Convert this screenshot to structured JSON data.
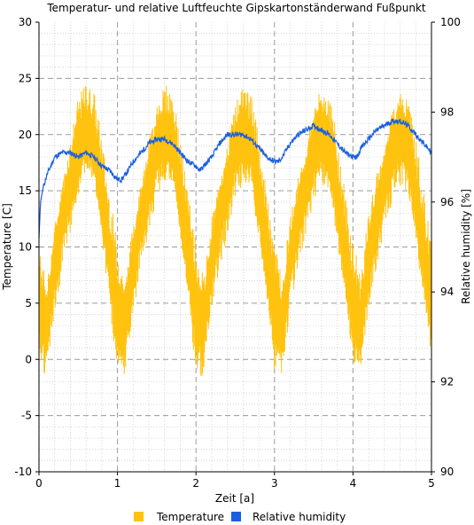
{
  "chart_data": {
    "type": "line",
    "title": "Temperatur- und relative Luftfeuchte Gipskartonständerwand Fußpunkt",
    "xlabel": "Zeit [a]",
    "ylabel_left": "Temperature [C]",
    "ylabel_right": "Relative humidity [%]",
    "xlim": [
      0,
      5
    ],
    "ylim_left": [
      -10,
      30
    ],
    "ylim_right": [
      90,
      100
    ],
    "x_ticks": [
      "0",
      "1",
      "2",
      "3",
      "4",
      "5"
    ],
    "y_ticks_left": [
      "-10",
      "-5",
      "0",
      "5",
      "10",
      "15",
      "20",
      "25",
      "30"
    ],
    "y_ticks_right": [
      "90",
      "92",
      "94",
      "96",
      "98",
      "100"
    ],
    "grid": true,
    "legend_position": "bottom",
    "series": [
      {
        "name": "Temperature",
        "axis": "left",
        "color": "#FFC20E",
        "description_points": {
          "x": [
            0.0,
            0.1,
            0.2,
            0.3,
            0.4,
            0.5,
            0.6,
            0.7,
            0.8,
            0.9,
            1.0,
            1.1,
            1.2,
            1.3,
            1.4,
            1.5,
            1.6,
            1.7,
            1.8,
            1.9,
            2.0,
            2.1,
            2.2,
            2.3,
            2.4,
            2.5,
            2.6,
            2.7,
            2.8,
            2.9,
            3.0,
            3.1,
            3.2,
            3.3,
            3.4,
            3.5,
            3.6,
            3.7,
            3.8,
            3.9,
            4.0,
            4.1,
            4.2,
            4.3,
            4.4,
            4.5,
            4.6,
            4.7,
            4.8,
            4.9,
            5.0
          ],
          "mean": [
            5,
            3,
            9,
            13,
            16,
            19,
            20,
            19,
            14,
            9,
            4,
            3,
            9,
            13,
            16,
            19,
            20,
            19,
            14,
            9,
            4,
            3,
            9,
            13,
            16,
            19,
            20,
            19,
            14,
            9,
            4,
            3,
            9,
            13,
            16,
            19,
            20,
            19,
            14,
            9,
            4,
            3,
            9,
            13,
            16,
            19,
            20,
            19,
            14,
            9,
            4
          ],
          "amplitude": [
            6,
            5,
            5,
            5,
            5,
            5,
            5,
            5,
            6,
            6,
            7,
            5,
            5,
            5,
            5,
            5,
            5,
            5,
            6,
            6,
            7,
            5,
            5,
            5,
            5,
            5,
            5,
            5,
            6,
            6,
            7,
            5,
            5,
            5,
            5,
            5,
            5,
            5,
            6,
            6,
            7,
            5,
            5,
            5,
            5,
            5,
            5,
            5,
            6,
            6,
            7
          ]
        }
      },
      {
        "name": "Relative humidity",
        "axis": "right",
        "color": "#1A5FE0",
        "values_x": [
          0.0,
          0.02,
          0.05,
          0.1,
          0.15,
          0.2,
          0.3,
          0.4,
          0.5,
          0.6,
          0.7,
          0.8,
          0.9,
          1.0,
          1.05,
          1.1,
          1.2,
          1.3,
          1.4,
          1.5,
          1.6,
          1.7,
          1.8,
          1.9,
          2.0,
          2.05,
          2.1,
          2.2,
          2.3,
          2.4,
          2.5,
          2.6,
          2.7,
          2.8,
          2.9,
          3.0,
          3.05,
          3.1,
          3.2,
          3.3,
          3.4,
          3.5,
          3.6,
          3.7,
          3.8,
          3.9,
          4.0,
          4.05,
          4.1,
          4.2,
          4.3,
          4.4,
          4.5,
          4.6,
          4.7,
          4.8,
          4.9,
          5.0
        ],
        "values_y": [
          95.2,
          96.0,
          96.3,
          96.6,
          96.8,
          97.0,
          97.1,
          97.1,
          97.0,
          97.1,
          97.0,
          96.8,
          96.7,
          96.5,
          96.5,
          96.6,
          96.9,
          97.1,
          97.3,
          97.4,
          97.4,
          97.3,
          97.1,
          96.9,
          96.8,
          96.7,
          96.8,
          97.0,
          97.3,
          97.5,
          97.5,
          97.5,
          97.4,
          97.2,
          97.0,
          96.9,
          96.9,
          97.0,
          97.3,
          97.5,
          97.6,
          97.7,
          97.6,
          97.5,
          97.3,
          97.1,
          97.0,
          97.0,
          97.2,
          97.4,
          97.6,
          97.7,
          97.8,
          97.8,
          97.7,
          97.5,
          97.3,
          97.1
        ]
      }
    ]
  }
}
